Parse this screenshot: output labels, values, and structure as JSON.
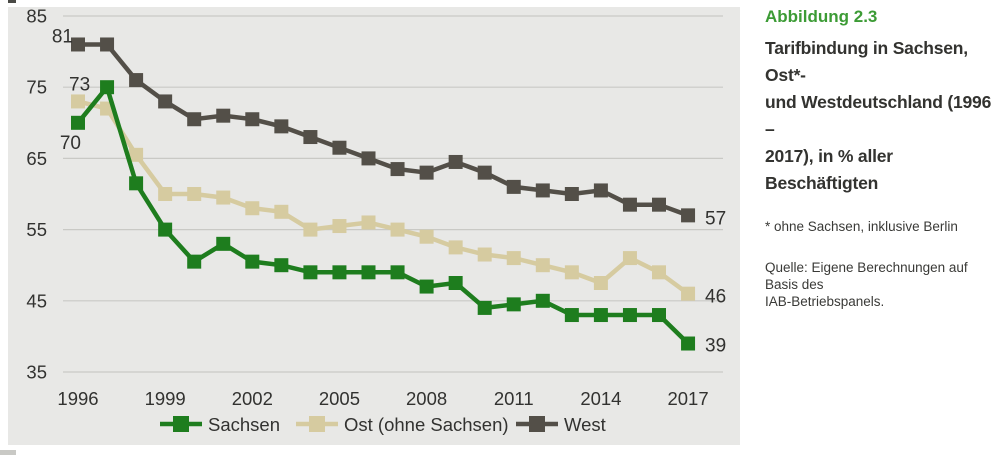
{
  "figure": {
    "label": "Abbildung 2.3",
    "title_lines": [
      "Tarifbindung in Sachsen, Ost*-",
      "und Westdeutschland (1996 –",
      "2017), in % aller Beschäftigten"
    ],
    "footnote": "* ohne Sachsen, inklusive Berlin",
    "source_lines": [
      "Quelle: Eigene Berechnungen auf Basis des",
      "IAB-Betriebspanels."
    ]
  },
  "colors": {
    "accent_green": "#3c9b35",
    "panel_bg": "#e8e8e6",
    "grid": "#c9c9c5",
    "axis_text": "#323230"
  },
  "chart_data": {
    "type": "line",
    "x": [
      1996,
      1997,
      1998,
      1999,
      2000,
      2001,
      2002,
      2003,
      2004,
      2005,
      2006,
      2007,
      2008,
      2009,
      2010,
      2011,
      2012,
      2013,
      2014,
      2015,
      2016,
      2017
    ],
    "x_tick_labels": [
      "1996",
      "1999",
      "2002",
      "2005",
      "2008",
      "2011",
      "2014",
      "2017"
    ],
    "y_ticks": [
      85,
      75,
      65,
      55,
      45,
      35
    ],
    "ylim": [
      35,
      85
    ],
    "grid": true,
    "legend_position": "bottom",
    "marker": "square",
    "series": [
      {
        "name": "Sachsen",
        "color": "#1e7d1e",
        "first_label": "70",
        "last_label": "39",
        "values": [
          70,
          75,
          61.5,
          55,
          50.5,
          53,
          50.5,
          50,
          49,
          49,
          49,
          49,
          47,
          47.5,
          44,
          44.5,
          45,
          43,
          43,
          43,
          43,
          39
        ]
      },
      {
        "name": "Ost (ohne Sachsen)",
        "color": "#d6cba0",
        "first_label": "73",
        "last_label": "46",
        "values": [
          73,
          72,
          65.5,
          60,
          60,
          59.5,
          58,
          57.5,
          55,
          55.5,
          56,
          55,
          54,
          52.5,
          51.5,
          51,
          50,
          49,
          47.5,
          51,
          49,
          46
        ]
      },
      {
        "name": "West",
        "color": "#534f48",
        "first_label": "81",
        "last_label": "57",
        "values": [
          81,
          81,
          76,
          73,
          70.5,
          71,
          70.5,
          69.5,
          68,
          66.5,
          65,
          63.5,
          63,
          64.5,
          63,
          61,
          60.5,
          60,
          60.5,
          58.5,
          58.5,
          57
        ]
      }
    ]
  }
}
